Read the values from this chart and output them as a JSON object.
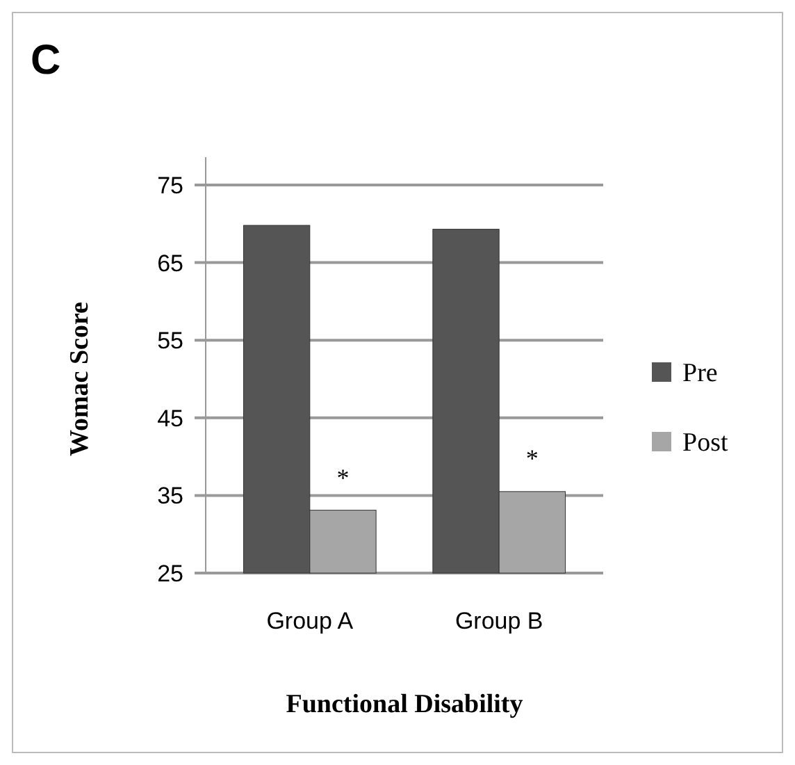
{
  "chart_data": {
    "type": "bar",
    "title": "C",
    "xlabel": "Functional Disability",
    "ylabel": "Womac Score",
    "categories": [
      "Group A",
      "Group B"
    ],
    "series": [
      {
        "name": "Pre",
        "color": "#555555",
        "values": [
          69.8,
          69.3
        ]
      },
      {
        "name": "Post",
        "color": "#a6a6a6",
        "values": [
          33.1,
          35.5
        ]
      }
    ],
    "ylim": [
      25,
      75
    ],
    "yticks": [
      25,
      35,
      45,
      55,
      65,
      75
    ],
    "grid": "y",
    "legend": "right",
    "annotations": [
      {
        "text": "*",
        "x": "Group A",
        "y": 38.5
      },
      {
        "text": "*",
        "x": "Group B",
        "y": 41
      }
    ]
  }
}
